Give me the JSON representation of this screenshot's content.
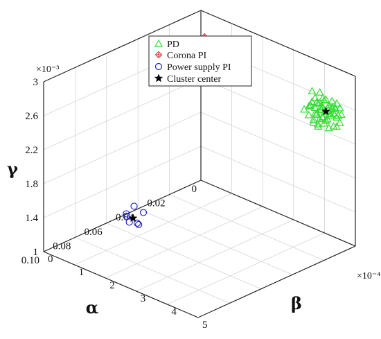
{
  "chart_data": {
    "type": "scatter",
    "title": "",
    "axes": {
      "alpha": {
        "label": "α",
        "range": [
          0,
          0.1
        ],
        "ticks": [
          "0",
          "0.02",
          "0.04",
          "0.06",
          "0.08",
          "0.10"
        ],
        "tick_values": [
          0,
          0.02,
          0.04,
          0.06,
          0.08,
          0.1
        ]
      },
      "beta": {
        "label": "β",
        "range": [
          0,
          5
        ],
        "multiplier": "×10⁻⁴",
        "ticks": [
          "0",
          "1",
          "2",
          "3",
          "4",
          "5"
        ],
        "tick_values": [
          0,
          1,
          2,
          3,
          4,
          5
        ]
      },
      "gamma": {
        "label": "γ",
        "range": [
          1,
          3
        ],
        "multiplier": "×10⁻³",
        "ticks": [
          "1",
          "1.4",
          "1.8",
          "2.2",
          "2.6",
          "3"
        ],
        "tick_values": [
          1,
          1.4,
          1.8,
          2.2,
          2.6,
          3
        ]
      }
    },
    "grid": true,
    "legend_position": "top-center",
    "series": [
      {
        "name": "PD",
        "marker": "triangle",
        "color": "#33dd33",
        "points": [
          [
            0.004,
            4.1,
            2.5
          ],
          [
            0.003,
            4.3,
            2.54
          ],
          [
            0.006,
            4.0,
            2.46
          ],
          [
            0.002,
            4.6,
            2.58
          ],
          [
            0.008,
            4.4,
            2.42
          ],
          [
            0.005,
            3.8,
            2.52
          ],
          [
            0.007,
            4.2,
            2.62
          ],
          [
            0.001,
            4.0,
            2.6
          ],
          [
            0.009,
            4.5,
            2.48
          ],
          [
            0.004,
            4.7,
            2.44
          ],
          [
            0.006,
            3.9,
            2.58
          ],
          [
            0.003,
            4.2,
            2.38
          ],
          [
            0.002,
            3.7,
            2.64
          ],
          [
            0.008,
            4.1,
            2.56
          ],
          [
            0.005,
            4.4,
            2.34
          ],
          [
            0.007,
            4.6,
            2.62
          ],
          [
            0.003,
            3.9,
            2.42
          ],
          [
            0.006,
            4.3,
            2.66
          ],
          [
            0.004,
            4.5,
            2.52
          ],
          [
            0.009,
            3.8,
            2.5
          ],
          [
            0.002,
            4.1,
            2.46
          ],
          [
            0.005,
            4.8,
            2.56
          ],
          [
            0.007,
            4.0,
            2.36
          ],
          [
            0.001,
            4.4,
            2.54
          ],
          [
            0.006,
            4.6,
            2.4
          ],
          [
            0.003,
            4.0,
            2.68
          ],
          [
            0.008,
            4.3,
            2.6
          ],
          [
            0.004,
            3.7,
            2.48
          ],
          [
            0.005,
            4.2,
            2.44
          ],
          [
            0.002,
            4.5,
            2.62
          ],
          [
            0.007,
            3.9,
            2.54
          ],
          [
            0.006,
            4.1,
            2.32
          ],
          [
            0.009,
            4.2,
            2.5
          ],
          [
            0.003,
            4.6,
            2.5
          ],
          [
            0.005,
            4.0,
            2.58
          ],
          [
            0.004,
            4.3,
            2.42
          ],
          [
            0.006,
            4.7,
            2.52
          ],
          [
            0.002,
            3.8,
            2.46
          ],
          [
            0.008,
            4.6,
            2.56
          ],
          [
            0.005,
            3.9,
            2.36
          ],
          [
            0.003,
            4.4,
            2.64
          ],
          [
            0.007,
            4.3,
            2.46
          ],
          [
            0.004,
            4.0,
            2.56
          ],
          [
            0.006,
            4.4,
            2.58
          ],
          [
            0.001,
            4.2,
            2.44
          ],
          [
            0.005,
            4.5,
            2.6
          ],
          [
            0.008,
            3.9,
            2.44
          ],
          [
            0.003,
            4.1,
            2.52
          ],
          [
            0.006,
            4.0,
            2.64
          ],
          [
            0.004,
            4.6,
            2.38
          ],
          [
            0.007,
            4.5,
            2.64
          ],
          [
            0.002,
            4.3,
            2.5
          ],
          [
            0.005,
            4.1,
            2.4
          ],
          [
            0.006,
            4.2,
            2.54
          ],
          [
            0.004,
            4.4,
            2.48
          ],
          [
            0.003,
            4.5,
            2.56
          ],
          [
            0.008,
            4.2,
            2.38
          ],
          [
            0.005,
            4.3,
            2.66
          ]
        ]
      },
      {
        "name": "Corona PI",
        "marker": "diamond-cross",
        "color": "#dd2222",
        "points": [
          [
            0.004,
            0.2,
            2.63
          ],
          [
            0.003,
            0.25,
            2.68
          ],
          [
            0.005,
            0.15,
            2.58
          ],
          [
            0.002,
            0.3,
            2.62
          ],
          [
            0.006,
            0.22,
            2.66
          ],
          [
            0.004,
            0.1,
            2.7
          ],
          [
            0.003,
            0.18,
            2.55
          ],
          [
            0.005,
            0.28,
            2.72
          ],
          [
            0.002,
            0.12,
            2.6
          ],
          [
            0.006,
            0.32,
            2.58
          ],
          [
            0.004,
            0.26,
            2.56
          ],
          [
            0.003,
            0.08,
            2.66
          ],
          [
            0.005,
            0.05,
            2.62
          ],
          [
            0.002,
            0.22,
            2.74
          ],
          [
            0.006,
            0.14,
            2.52
          ],
          [
            0.004,
            0.35,
            2.66
          ]
        ]
      },
      {
        "name": "Power supply PI",
        "marker": "circle",
        "color": "#2222cc",
        "points": [
          [
            0.07,
            1.4,
            1.5
          ],
          [
            0.073,
            1.3,
            1.42
          ],
          [
            0.068,
            1.6,
            1.44
          ],
          [
            0.075,
            1.5,
            1.37
          ],
          [
            0.071,
            1.2,
            1.36
          ],
          [
            0.069,
            1.45,
            1.3
          ],
          [
            0.072,
            1.65,
            1.34
          ]
        ]
      },
      {
        "name": "Cluster center",
        "marker": "star",
        "color": "#000000",
        "points": [
          [
            0.005,
            4.3,
            2.52
          ],
          [
            0.004,
            0.2,
            2.63
          ],
          [
            0.071,
            1.42,
            1.37
          ]
        ]
      }
    ]
  }
}
